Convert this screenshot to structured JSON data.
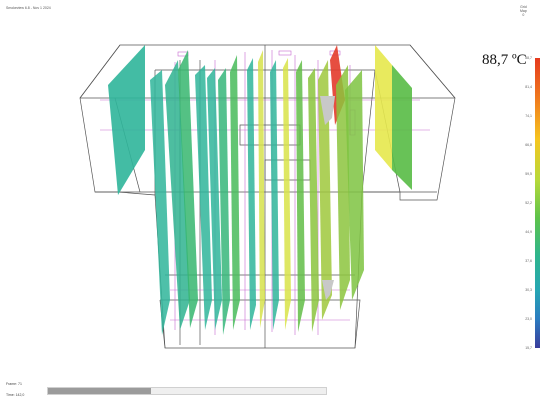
{
  "header": {
    "title": "Smokeview 6.8 - Nov 1 2024"
  },
  "top_right": {
    "line1": "Grid",
    "line2": "Map",
    "line3": "0"
  },
  "legend": {
    "value_label": "88,7 ºC",
    "ticks": [
      "88,7",
      "81,4",
      "74,1",
      "66,8",
      "59,5",
      "52,2",
      "44,9",
      "37,6",
      "30,3",
      "23,0",
      "15,7"
    ]
  },
  "footer": {
    "frame_label": "Frame: 71",
    "time_label": "Time: 142,0",
    "progress": 0.37
  },
  "colors": {
    "wire_dark": "#555555",
    "wire_magenta": "#c76ad0",
    "slice_teal": "#2fb59a",
    "slice_green": "#6cc049",
    "slice_yellow": "#e5e84c",
    "slice_red": "#e33b2b"
  }
}
